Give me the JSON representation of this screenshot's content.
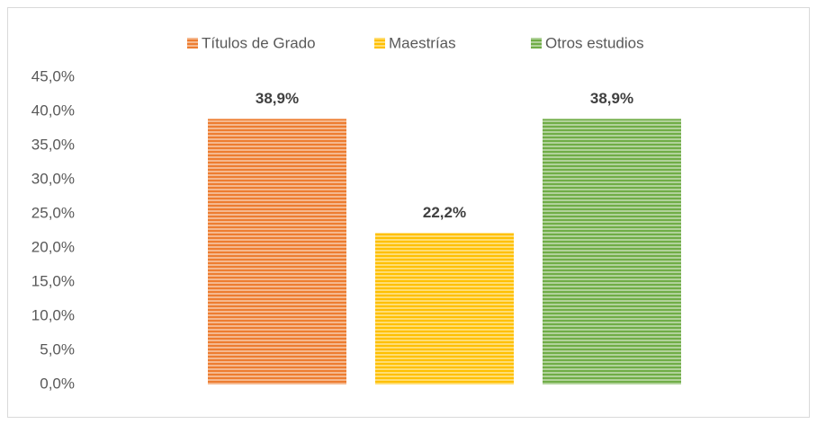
{
  "chart_data": {
    "type": "bar",
    "categories": [
      null
    ],
    "series": [
      {
        "name": "Títulos de Grado",
        "color": "#ED7D31",
        "values": [
          38.9
        ],
        "value_labels": [
          "38,9%"
        ]
      },
      {
        "name": "Maestrías",
        "color": "#FFC000",
        "values": [
          22.2
        ],
        "value_labels": [
          "22,2%"
        ]
      },
      {
        "name": "Otros estudios",
        "color": "#70AD47",
        "values": [
          38.9
        ],
        "value_labels": [
          "38,9%"
        ]
      }
    ],
    "ylim": [
      0,
      45
    ],
    "yticks": [
      {
        "value": 0,
        "label": "0,0%"
      },
      {
        "value": 5,
        "label": "5,0%"
      },
      {
        "value": 10,
        "label": "10,0%"
      },
      {
        "value": 15,
        "label": "15,0%"
      },
      {
        "value": 20,
        "label": "20,0%"
      },
      {
        "value": 25,
        "label": "25,0%"
      },
      {
        "value": 30,
        "label": "30,0%"
      },
      {
        "value": 35,
        "label": "35,0%"
      },
      {
        "value": 40,
        "label": "40,0%"
      },
      {
        "value": 45,
        "label": "45,0%"
      }
    ],
    "grid": false,
    "legend": "top"
  }
}
